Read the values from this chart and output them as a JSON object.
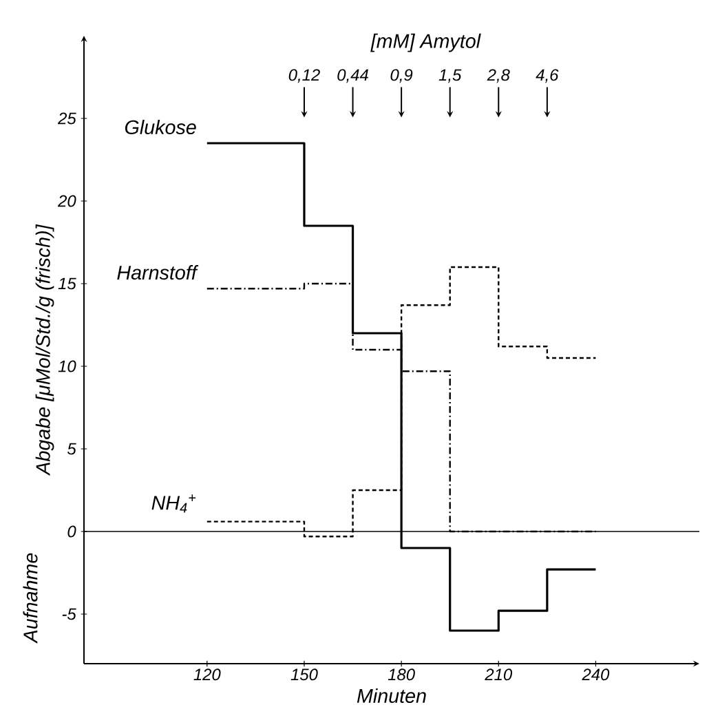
{
  "chart_data": {
    "type": "step",
    "xlabel": "Minuten",
    "ylabel": "Abgabe [μMol/Std./g (frisch)]",
    "xlim": [
      82,
      272
    ],
    "ylim": [
      -8,
      30
    ],
    "xticks": [
      120,
      150,
      180,
      210,
      240
    ],
    "yticks": [
      -5,
      0,
      5,
      10,
      15,
      20,
      25
    ],
    "grid": false,
    "marker": "none",
    "ref_lines": [
      {
        "axis": "y",
        "value": 0
      }
    ],
    "annotations": [
      "[mM] Amytol",
      "Aufnahme",
      "0,12",
      "0,44",
      "0,9",
      "1,5",
      "2,8",
      "4,6"
    ],
    "series": [
      {
        "name": "Glukose",
        "color": "#000000",
        "line_style": "solid",
        "x": [
          120,
          150,
          165,
          180,
          195,
          210,
          225,
          240
        ],
        "values": [
          23.5,
          18.5,
          12,
          -1,
          -6,
          -4.8,
          -2.3,
          -2.3
        ]
      },
      {
        "name": "Harnstoff",
        "color": "#000000",
        "line_style": "dashdot",
        "x": [
          120,
          150,
          165,
          180,
          195,
          210,
          225,
          240
        ],
        "values": [
          14.7,
          15,
          11,
          9.7,
          0,
          0,
          0,
          0
        ]
      },
      {
        "name": "NH$_{4}$$^{+}$",
        "color": "#000000",
        "line_style": "dashed",
        "x": [
          120,
          150,
          165,
          180,
          195,
          210,
          225,
          240
        ],
        "values": [
          0.6,
          -0.3,
          2.5,
          13.7,
          16,
          11.2,
          10.5,
          10.5
        ]
      }
    ]
  }
}
